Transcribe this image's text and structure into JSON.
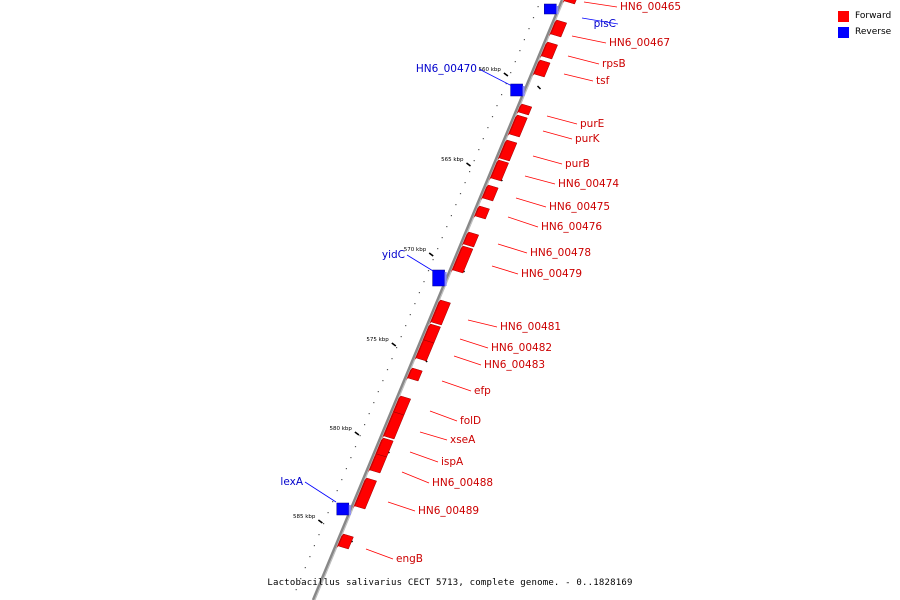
{
  "title": "Lactobacillus salivarius CECT 5713, complete genome. - 0..1828169",
  "legend": {
    "items": [
      {
        "label": "Forward",
        "color": "#ff0000"
      },
      {
        "label": "Reverse",
        "color": "#0000ff"
      }
    ]
  },
  "colors": {
    "forward": "#ff0000",
    "reverse": "#0000ff",
    "forward_label": "#cc0000",
    "reverse_label": "#0000cc",
    "backbone": "#888888"
  },
  "scale_labels": [
    "560 kbp",
    "565 kbp",
    "570 kbp",
    "575 kbp",
    "580 kbp",
    "585 kbp"
  ],
  "genes": [
    {
      "label": "HN6_00465",
      "strand": "forward"
    },
    {
      "label": "plsC",
      "strand": "reverse"
    },
    {
      "label": "HN6_00467",
      "strand": "forward"
    },
    {
      "label": "rpsB",
      "strand": "forward"
    },
    {
      "label": "tsf",
      "strand": "forward"
    },
    {
      "label": "HN6_00470",
      "strand": "reverse"
    },
    {
      "label": "purE",
      "strand": "forward"
    },
    {
      "label": "purK",
      "strand": "forward"
    },
    {
      "label": "purB",
      "strand": "forward"
    },
    {
      "label": "HN6_00474",
      "strand": "forward"
    },
    {
      "label": "HN6_00475",
      "strand": "forward"
    },
    {
      "label": "HN6_00476",
      "strand": "forward"
    },
    {
      "label": "HN6_00478",
      "strand": "forward"
    },
    {
      "label": "HN6_00479",
      "strand": "forward"
    },
    {
      "label": "yidC",
      "strand": "reverse"
    },
    {
      "label": "HN6_00481",
      "strand": "forward"
    },
    {
      "label": "HN6_00482",
      "strand": "forward"
    },
    {
      "label": "HN6_00483",
      "strand": "forward"
    },
    {
      "label": "efp",
      "strand": "forward"
    },
    {
      "label": "folD",
      "strand": "forward"
    },
    {
      "label": "xseA",
      "strand": "forward"
    },
    {
      "label": "ispA",
      "strand": "forward"
    },
    {
      "label": "HN6_00488",
      "strand": "forward"
    },
    {
      "label": "lexA",
      "strand": "reverse"
    },
    {
      "label": "HN6_00489",
      "strand": "forward"
    },
    {
      "label": "engB",
      "strand": "forward"
    }
  ]
}
